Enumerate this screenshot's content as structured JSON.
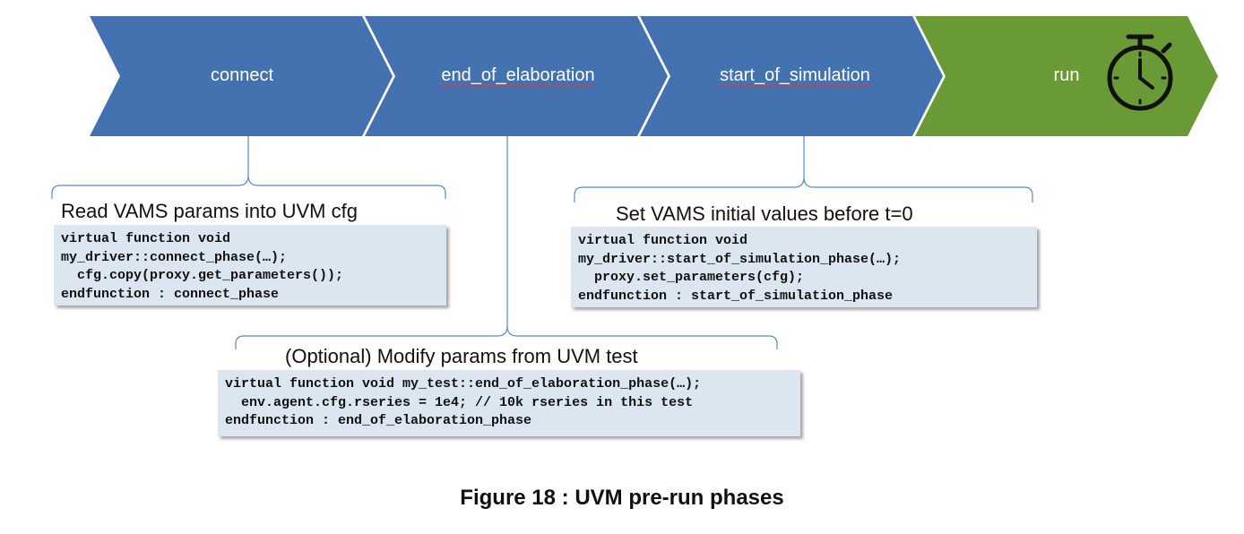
{
  "phases": [
    {
      "label": "connect",
      "color": "#4472b0"
    },
    {
      "label": "end_of_elaboration",
      "color": "#4472b0"
    },
    {
      "label": "start_of_simulation",
      "color": "#4472b0"
    },
    {
      "label": "run",
      "color": "#6a9a36"
    }
  ],
  "run_icon": "stopwatch-icon",
  "callouts": {
    "connect": {
      "title": "Read VAMS params into UVM cfg",
      "code": [
        "virtual function void",
        "my_driver::connect_phase(…);",
        "  cfg.copy(proxy.get_parameters());",
        "endfunction : connect_phase"
      ]
    },
    "start_of_simulation": {
      "title": "Set VAMS initial values before t=0",
      "code": [
        "virtual function void",
        "my_driver::start_of_simulation_phase(…);",
        "  proxy.set_parameters(cfg);",
        "endfunction : start_of_simulation_phase"
      ]
    },
    "end_of_elaboration": {
      "title": "(Optional) Modify params from UVM test",
      "code": [
        "virtual function void my_test::end_of_elaboration_phase(…);",
        "  env.agent.cfg.rseries = 1e4; // 10k rseries in this test",
        "endfunction : end_of_elaboration_phase"
      ]
    }
  },
  "caption": "Figure 18 : UVM pre-run phases"
}
